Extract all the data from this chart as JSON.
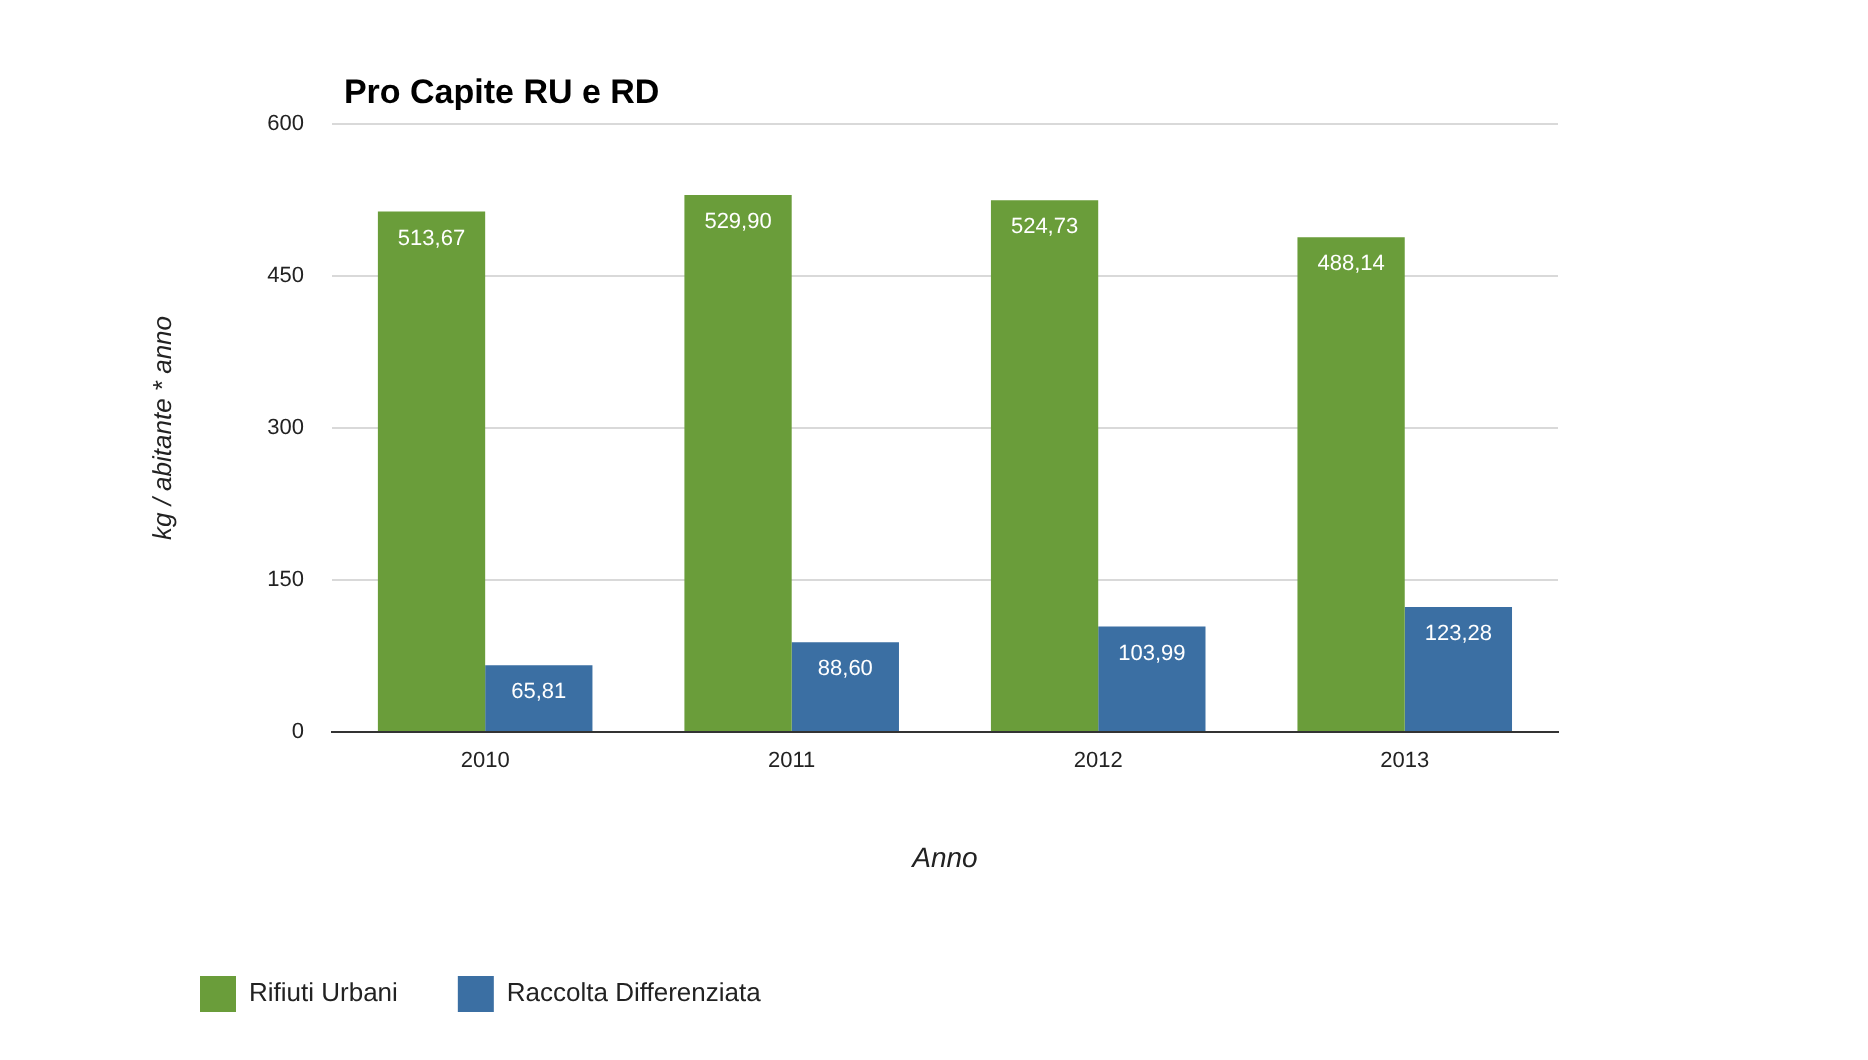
{
  "chart_data": {
    "type": "bar",
    "title": "Pro Capite RU e RD",
    "xlabel": "Anno",
    "ylabel": "kg / abitante * anno",
    "categories": [
      "2010",
      "2011",
      "2012",
      "2013"
    ],
    "series": [
      {
        "name": "Rifiuti Urbani",
        "color": "#6a9d3a",
        "values": [
          513.67,
          529.9,
          524.73,
          488.14
        ],
        "value_labels": [
          "513,67",
          "529,90",
          "524,73",
          "488,14"
        ]
      },
      {
        "name": "Raccolta Differenziata",
        "color": "#3b6fa3",
        "values": [
          65.81,
          88.6,
          103.99,
          123.28
        ],
        "value_labels": [
          "65,81",
          "88,60",
          "103,99",
          "123,28"
        ]
      }
    ],
    "ylim": [
      0,
      600
    ],
    "yticks": [
      0,
      150,
      300,
      450,
      600
    ],
    "grid": "y",
    "legend": "bottom left"
  }
}
